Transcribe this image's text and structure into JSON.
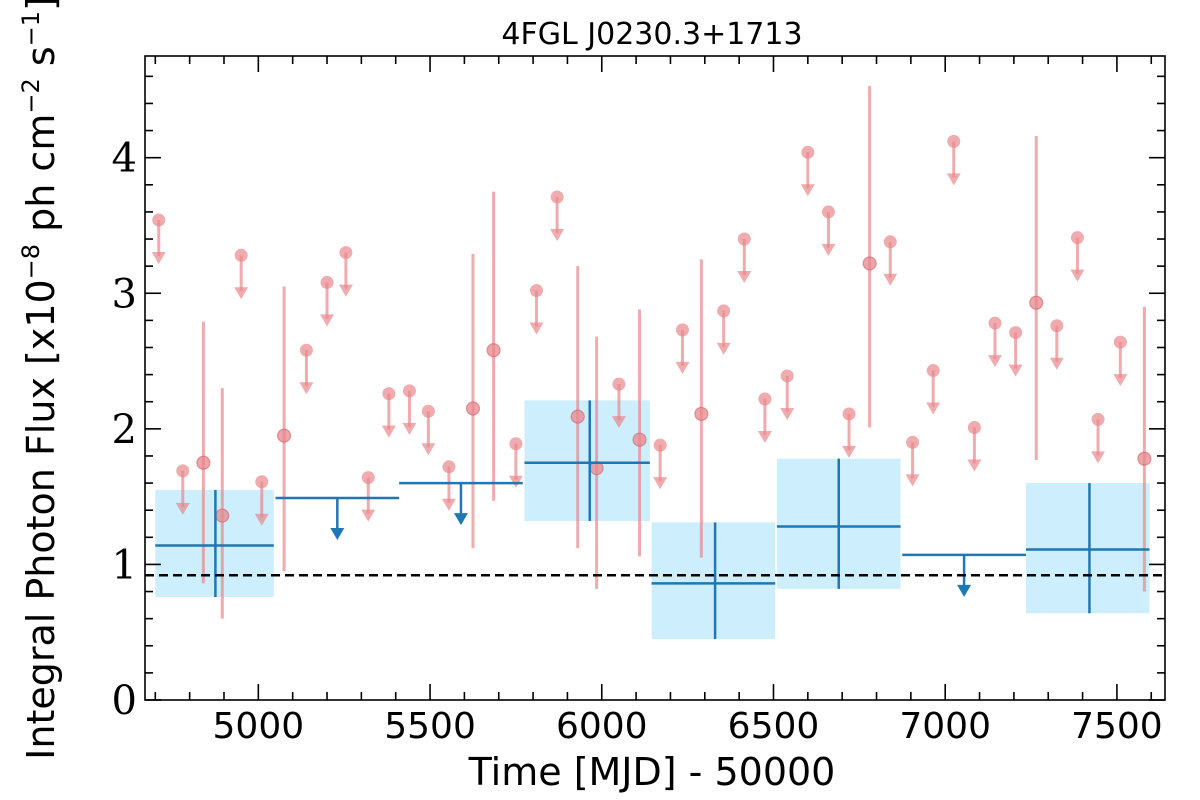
{
  "chart_data": {
    "type": "scatter",
    "title": "4FGL J0230.3+1713",
    "xlabel": "Time [MJD] - 50000",
    "ylabel": "Integral Photon Flux [x10",
    "ylabel_exp1": "−8",
    "ylabel_mid": " ph cm",
    "ylabel_exp2": "−2",
    "ylabel_mid2": " s",
    "ylabel_exp3": "−1",
    "ylabel_end": "]",
    "xlim": [
      4670,
      7640
    ],
    "ylim": [
      0,
      4.75
    ],
    "x_ticks": [
      5000,
      5500,
      6000,
      6500,
      7000,
      7500
    ],
    "y_ticks": [
      0,
      1,
      2,
      3,
      4
    ],
    "x_tick_labels": [
      "5000",
      "5500",
      "6000",
      "6500",
      "7000",
      "7500"
    ],
    "y_tick_labels": [
      "0",
      "1",
      "2",
      "3",
      "4"
    ],
    "reference_level": 0.92,
    "colors": {
      "fine_points": "#e8878c",
      "coarse_bins": "#1f77b4",
      "coarse_box": "#cdeefc",
      "reference": "#000000"
    },
    "series": [
      {
        "kind": "fine-bin detections",
        "points": [
          {
            "x": 4840,
            "y": 1.75,
            "lo": 0.86,
            "hi": 2.79
          },
          {
            "x": 4895,
            "y": 1.36,
            "lo": 0.6,
            "hi": 2.3
          },
          {
            "x": 5075,
            "y": 1.95,
            "lo": 0.95,
            "hi": 3.05
          },
          {
            "x": 5625,
            "y": 2.15,
            "lo": 1.12,
            "hi": 3.29
          },
          {
            "x": 5685,
            "y": 2.58,
            "lo": 1.47,
            "hi": 3.75
          },
          {
            "x": 5930,
            "y": 2.09,
            "lo": 1.12,
            "hi": 3.2
          },
          {
            "x": 5985,
            "y": 1.71,
            "lo": 0.82,
            "hi": 2.68
          },
          {
            "x": 6110,
            "y": 1.92,
            "lo": 1.06,
            "hi": 2.88
          },
          {
            "x": 6290,
            "y": 2.11,
            "lo": 1.05,
            "hi": 3.25
          },
          {
            "x": 6780,
            "y": 3.22,
            "lo": 2.01,
            "hi": 4.53
          },
          {
            "x": 7265,
            "y": 2.93,
            "lo": 1.77,
            "hi": 4.16
          },
          {
            "x": 7580,
            "y": 1.78,
            "lo": 0.8,
            "hi": 2.9
          }
        ]
      },
      {
        "kind": "fine-bin upper limits",
        "points": [
          {
            "x": 4710,
            "y": 3.54
          },
          {
            "x": 4780,
            "y": 1.69
          },
          {
            "x": 4950,
            "y": 3.28
          },
          {
            "x": 5010,
            "y": 1.61
          },
          {
            "x": 5140,
            "y": 2.58
          },
          {
            "x": 5200,
            "y": 3.08
          },
          {
            "x": 5255,
            "y": 3.3
          },
          {
            "x": 5320,
            "y": 1.64
          },
          {
            "x": 5380,
            "y": 2.26
          },
          {
            "x": 5440,
            "y": 2.28
          },
          {
            "x": 5495,
            "y": 2.13
          },
          {
            "x": 5555,
            "y": 1.72
          },
          {
            "x": 5750,
            "y": 1.89
          },
          {
            "x": 5810,
            "y": 3.02
          },
          {
            "x": 5870,
            "y": 3.71
          },
          {
            "x": 6050,
            "y": 2.33
          },
          {
            "x": 6170,
            "y": 1.88
          },
          {
            "x": 6235,
            "y": 2.73
          },
          {
            "x": 6355,
            "y": 2.87
          },
          {
            "x": 6415,
            "y": 3.4
          },
          {
            "x": 6475,
            "y": 2.22
          },
          {
            "x": 6540,
            "y": 2.39
          },
          {
            "x": 6600,
            "y": 4.04
          },
          {
            "x": 6660,
            "y": 3.6
          },
          {
            "x": 6720,
            "y": 2.11
          },
          {
            "x": 6840,
            "y": 3.38
          },
          {
            "x": 6905,
            "y": 1.9
          },
          {
            "x": 6965,
            "y": 2.43
          },
          {
            "x": 7025,
            "y": 4.12
          },
          {
            "x": 7085,
            "y": 2.01
          },
          {
            "x": 7145,
            "y": 2.78
          },
          {
            "x": 7205,
            "y": 2.71
          },
          {
            "x": 7325,
            "y": 2.76
          },
          {
            "x": 7385,
            "y": 3.41
          },
          {
            "x": 7445,
            "y": 2.07
          },
          {
            "x": 7510,
            "y": 2.64
          }
        ]
      },
      {
        "kind": "coarse-bin detections",
        "bins": [
          {
            "x0": 4700,
            "x1": 5045,
            "xc": 4875,
            "y": 1.14,
            "lo": 0.76,
            "hi": 1.55
          },
          {
            "x0": 5775,
            "x1": 6140,
            "xc": 5965,
            "y": 1.75,
            "lo": 1.32,
            "hi": 2.21
          },
          {
            "x0": 6145,
            "x1": 6505,
            "xc": 6330,
            "y": 0.86,
            "lo": 0.45,
            "hi": 1.31
          },
          {
            "x0": 6510,
            "x1": 6870,
            "xc": 6690,
            "y": 1.28,
            "lo": 0.82,
            "hi": 1.78
          },
          {
            "x0": 7235,
            "x1": 7595,
            "xc": 7420,
            "y": 1.11,
            "lo": 0.64,
            "hi": 1.6
          }
        ]
      },
      {
        "kind": "coarse-bin upper limits",
        "bins": [
          {
            "x0": 5050,
            "x1": 5410,
            "xc": 5230,
            "y": 1.49
          },
          {
            "x0": 5410,
            "x1": 5770,
            "xc": 5590,
            "y": 1.6
          },
          {
            "x0": 6875,
            "x1": 7235,
            "xc": 7055,
            "y": 1.07
          }
        ]
      }
    ]
  }
}
